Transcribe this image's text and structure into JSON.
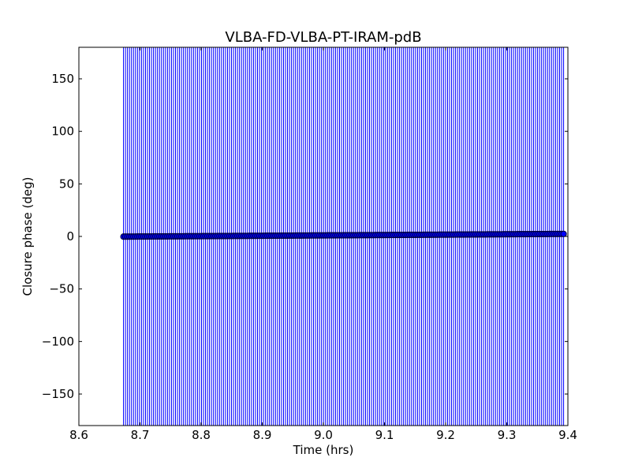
{
  "chart_data": {
    "type": "scatter",
    "title": "VLBA-FD-VLBA-PT-IRAM-pdB",
    "xlabel": "Time (hrs)",
    "ylabel": "Closure phase (deg)",
    "xlim": [
      8.6,
      9.4
    ],
    "ylim": [
      -180,
      180
    ],
    "xticks": [
      8.6,
      8.7,
      8.8,
      8.9,
      9.0,
      9.1,
      9.2,
      9.3,
      9.4
    ],
    "xtick_labels": [
      "8.6",
      "8.7",
      "8.8",
      "8.9",
      "9.0",
      "9.1",
      "9.2",
      "9.3",
      "9.4"
    ],
    "yticks": [
      150,
      100,
      50,
      0,
      -50,
      -100,
      -150
    ],
    "ytick_labels": [
      "150",
      "100",
      "50",
      "0",
      "−50",
      "−100",
      "−150"
    ],
    "grid": false,
    "series": [
      {
        "x_start": 8.673,
        "x_end": 9.393,
        "count": 221,
        "y_start": -0.2,
        "y_end": 2.4,
        "error_low": -180,
        "error_high": 180,
        "color": "#0000ff",
        "marker_edge": "#000033",
        "marker_fill": "#0000ff"
      }
    ]
  }
}
